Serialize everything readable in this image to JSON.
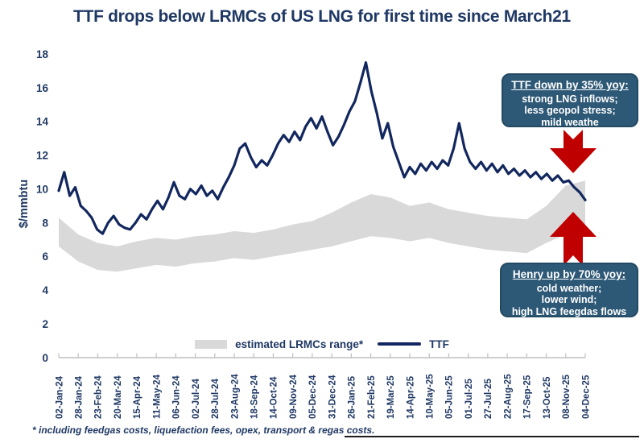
{
  "title": "TTF drops below LRMCs of US LNG for first time since March21",
  "footnote": "* including feedgas costs, liquefaction fees, opex, transport & regas costs.",
  "colors": {
    "title_navy": "#1F3864",
    "ttf_line": "#12275E",
    "lrmc_band": "#D9D9D9",
    "callout_fill": "#2D5876",
    "callout_border": "#234a63",
    "arrow_red": "#C00000",
    "axis_gray": "#BFBFBF"
  },
  "legend": {
    "band_label": "estimated LRMCs range*",
    "line_label": "TTF"
  },
  "annotations": {
    "top": {
      "heading": "TTF down by 35% yoy:",
      "lines": [
        "strong LNG inflows;",
        "less geopol stress;",
        "mild weathe"
      ]
    },
    "bottom": {
      "heading": "Henry up by 70% yoy:",
      "lines": [
        "cold weather;",
        "lower wind;",
        "high LNG feegdas flows"
      ]
    }
  },
  "chart_data": {
    "type": "line",
    "title": "TTF drops below LRMCs of US LNG for first time since March21",
    "xlabel": "",
    "ylabel": "$/mmbtu",
    "ylim": [
      0,
      18
    ],
    "ytick_step": 2,
    "grid": false,
    "legend_position": "bottom",
    "categories": [
      "02-Jan-24",
      "28-Jan-24",
      "23-Feb-24",
      "20-Mar-24",
      "15-Apr-24",
      "11-May-24",
      "06-Jun-24",
      "02-Jul-24",
      "28-Jul-24",
      "23-Aug-24",
      "18-Sep-24",
      "14-Oct-24",
      "09-Nov-24",
      "05-Dec-24",
      "31-Dec-24",
      "26-Jan-25",
      "21-Feb-25",
      "19-Mar-25",
      "14-Apr-25",
      "10-May-25",
      "05-Jun-25",
      "01-Jul-25",
      "27-Jul-25",
      "22-Aug-25",
      "17-Sep-25",
      "13-Oct-25",
      "08-Nov-25",
      "04-Dec-25"
    ],
    "series": [
      {
        "name": "TTF",
        "type": "line",
        "color": "#12275E",
        "values": [
          9.9,
          11.0,
          9.6,
          10.1,
          9.0,
          8.7,
          8.3,
          7.6,
          7.35,
          8.0,
          8.4,
          7.9,
          7.7,
          7.6,
          8.0,
          8.5,
          8.2,
          8.8,
          9.3,
          8.8,
          9.5,
          10.4,
          9.6,
          9.4,
          10.0,
          9.7,
          10.2,
          9.6,
          9.9,
          9.4,
          10.1,
          10.7,
          11.4,
          12.4,
          12.7,
          11.9,
          11.3,
          11.7,
          11.4,
          12.0,
          12.7,
          13.2,
          12.8,
          13.4,
          12.9,
          13.7,
          14.2,
          13.6,
          14.3,
          13.4,
          12.6,
          13.1,
          13.8,
          14.6,
          15.2,
          16.3,
          17.5,
          15.8,
          14.5,
          13.0,
          13.9,
          12.5,
          11.6,
          10.7,
          11.3,
          10.9,
          11.5,
          11.1,
          11.6,
          11.2,
          11.7,
          11.4,
          12.4,
          13.9,
          12.4,
          11.6,
          11.2,
          11.6,
          11.1,
          11.5,
          11.0,
          11.4,
          10.9,
          11.2,
          10.8,
          11.1,
          10.7,
          11.0,
          10.6,
          10.9,
          10.5,
          10.8,
          10.4,
          10.5,
          10.1,
          9.8,
          9.35
        ]
      },
      {
        "name": "estimated LRMCs range*",
        "type": "band",
        "color": "#D9D9D9",
        "low": [
          6.6,
          5.7,
          5.2,
          5.1,
          5.3,
          5.5,
          5.4,
          5.6,
          5.7,
          5.9,
          5.8,
          6.0,
          6.2,
          6.4,
          6.6,
          6.9,
          7.2,
          7.1,
          6.9,
          7.1,
          6.8,
          6.6,
          6.4,
          6.3,
          6.2,
          6.8,
          7.3,
          7.6
        ],
        "high": [
          8.3,
          7.3,
          6.8,
          6.6,
          6.9,
          7.1,
          7.0,
          7.2,
          7.3,
          7.5,
          7.4,
          7.6,
          7.9,
          8.1,
          8.6,
          9.2,
          9.7,
          9.5,
          9.0,
          9.2,
          8.8,
          8.6,
          8.4,
          8.3,
          8.2,
          9.0,
          10.2,
          10.5
        ]
      }
    ]
  }
}
